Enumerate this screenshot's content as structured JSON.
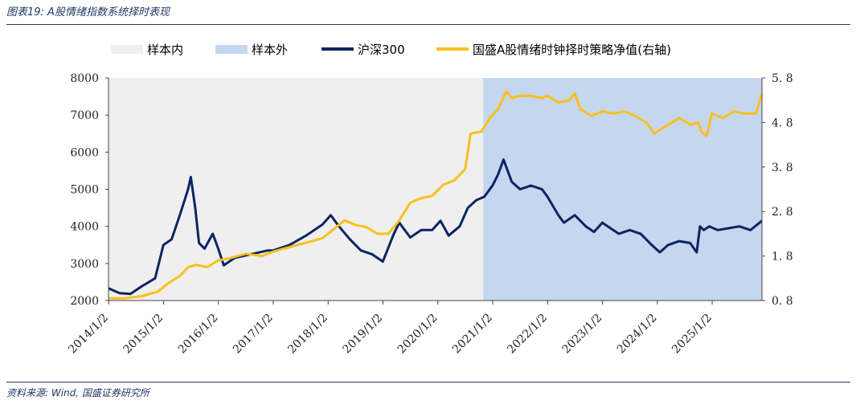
{
  "header": {
    "title": "图表19:  A股情绪指数系统择时表现"
  },
  "footer": {
    "source": "资料来源: Wind, 国盛证券研究所"
  },
  "chart_data": {
    "type": "line",
    "title": "A股情绪指数系统择时表现",
    "regions": [
      {
        "name": "样本内",
        "from": "2014/1/2",
        "to": "2020/10/30",
        "color": "#efefef"
      },
      {
        "name": "样本外",
        "from": "2020/10/30",
        "to": "2025/11/28",
        "color": "#c5d6ef"
      }
    ],
    "x_tick_labels": [
      "2014/1/2",
      "2015/1/2",
      "2016/1/2",
      "2017/1/2",
      "2018/1/2",
      "2019/1/2",
      "2020/1/2",
      "2021/1/2",
      "2022/1/2",
      "2023/1/2",
      "2024/1/2",
      "2025/1/2"
    ],
    "x_range": [
      2014.0,
      2025.91
    ],
    "y_left": {
      "range": [
        2000,
        8000
      ],
      "ticks": [
        "2000",
        "3000",
        "4000",
        "5000",
        "6000",
        "7000",
        "8000"
      ]
    },
    "y_right": {
      "range": [
        0.8,
        5.8
      ],
      "ticks": [
        "0. 8",
        "1. 8",
        "2. 8",
        "3. 8",
        "4. 8",
        "5. 8"
      ],
      "label": "右轴"
    },
    "series": [
      {
        "name": "沪深300",
        "axis": "left",
        "color": "#0b2463",
        "x": [
          2014.0,
          2014.2,
          2014.4,
          2014.6,
          2014.85,
          2015.0,
          2015.15,
          2015.3,
          2015.45,
          2015.5,
          2015.58,
          2015.65,
          2015.75,
          2015.9,
          2016.0,
          2016.1,
          2016.3,
          2016.6,
          2016.9,
          2017.0,
          2017.3,
          2017.6,
          2017.9,
          2018.05,
          2018.2,
          2018.4,
          2018.6,
          2018.8,
          2019.0,
          2019.2,
          2019.3,
          2019.5,
          2019.7,
          2019.9,
          2020.05,
          2020.2,
          2020.4,
          2020.55,
          2020.7,
          2020.85,
          2021.0,
          2021.1,
          2021.2,
          2021.35,
          2021.5,
          2021.7,
          2021.9,
          2022.0,
          2022.2,
          2022.3,
          2022.5,
          2022.7,
          2022.85,
          2023.0,
          2023.1,
          2023.3,
          2023.5,
          2023.7,
          2023.9,
          2024.05,
          2024.2,
          2024.4,
          2024.6,
          2024.72,
          2024.78,
          2024.85,
          2024.95,
          2025.1,
          2025.3,
          2025.5,
          2025.7,
          2025.91
        ],
        "values": [
          2330,
          2200,
          2180,
          2380,
          2600,
          3500,
          3650,
          4300,
          5000,
          5330,
          4500,
          3550,
          3400,
          3800,
          3400,
          2950,
          3150,
          3250,
          3350,
          3350,
          3500,
          3750,
          4050,
          4300,
          4000,
          3650,
          3350,
          3250,
          3050,
          3800,
          4100,
          3700,
          3900,
          3900,
          4150,
          3750,
          4000,
          4500,
          4700,
          4800,
          5100,
          5400,
          5800,
          5200,
          5000,
          5100,
          5000,
          4800,
          4300,
          4100,
          4300,
          4000,
          3850,
          4100,
          4000,
          3800,
          3900,
          3800,
          3500,
          3300,
          3500,
          3600,
          3550,
          3300,
          4000,
          3900,
          4000,
          3900,
          3950,
          4000,
          3900,
          4150
        ]
      },
      {
        "name": "国盛A股情绪时钟择时策略净值(右轴)",
        "axis": "right",
        "color": "#f7c11a",
        "x": [
          2014.0,
          2014.3,
          2014.6,
          2014.9,
          2015.1,
          2015.3,
          2015.45,
          2015.6,
          2015.8,
          2016.0,
          2016.2,
          2016.5,
          2016.8,
          2017.0,
          2017.3,
          2017.6,
          2017.9,
          2018.1,
          2018.3,
          2018.5,
          2018.7,
          2018.9,
          2019.1,
          2019.3,
          2019.5,
          2019.7,
          2019.9,
          2020.1,
          2020.3,
          2020.5,
          2020.6,
          2020.8,
          2020.95,
          2021.1,
          2021.25,
          2021.35,
          2021.5,
          2021.7,
          2021.9,
          2022.0,
          2022.2,
          2022.4,
          2022.5,
          2022.6,
          2022.8,
          2023.0,
          2023.2,
          2023.4,
          2023.6,
          2023.8,
          2023.95,
          2024.0,
          2024.2,
          2024.4,
          2024.6,
          2024.75,
          2024.8,
          2024.9,
          2025.0,
          2025.2,
          2025.4,
          2025.6,
          2025.8,
          2025.91
        ],
        "values": [
          0.85,
          0.85,
          0.9,
          1.0,
          1.2,
          1.35,
          1.55,
          1.6,
          1.55,
          1.7,
          1.75,
          1.85,
          1.8,
          1.9,
          2.0,
          2.1,
          2.2,
          2.4,
          2.6,
          2.5,
          2.45,
          2.3,
          2.3,
          2.6,
          3.0,
          3.1,
          3.15,
          3.4,
          3.5,
          3.75,
          4.55,
          4.6,
          4.9,
          5.1,
          5.5,
          5.35,
          5.4,
          5.4,
          5.35,
          5.4,
          5.25,
          5.3,
          5.45,
          5.1,
          4.95,
          5.05,
          5.0,
          5.05,
          4.95,
          4.8,
          4.55,
          4.6,
          4.75,
          4.9,
          4.75,
          4.8,
          4.6,
          4.5,
          5.0,
          4.9,
          5.05,
          5.0,
          5.0,
          5.45
        ]
      }
    ]
  }
}
